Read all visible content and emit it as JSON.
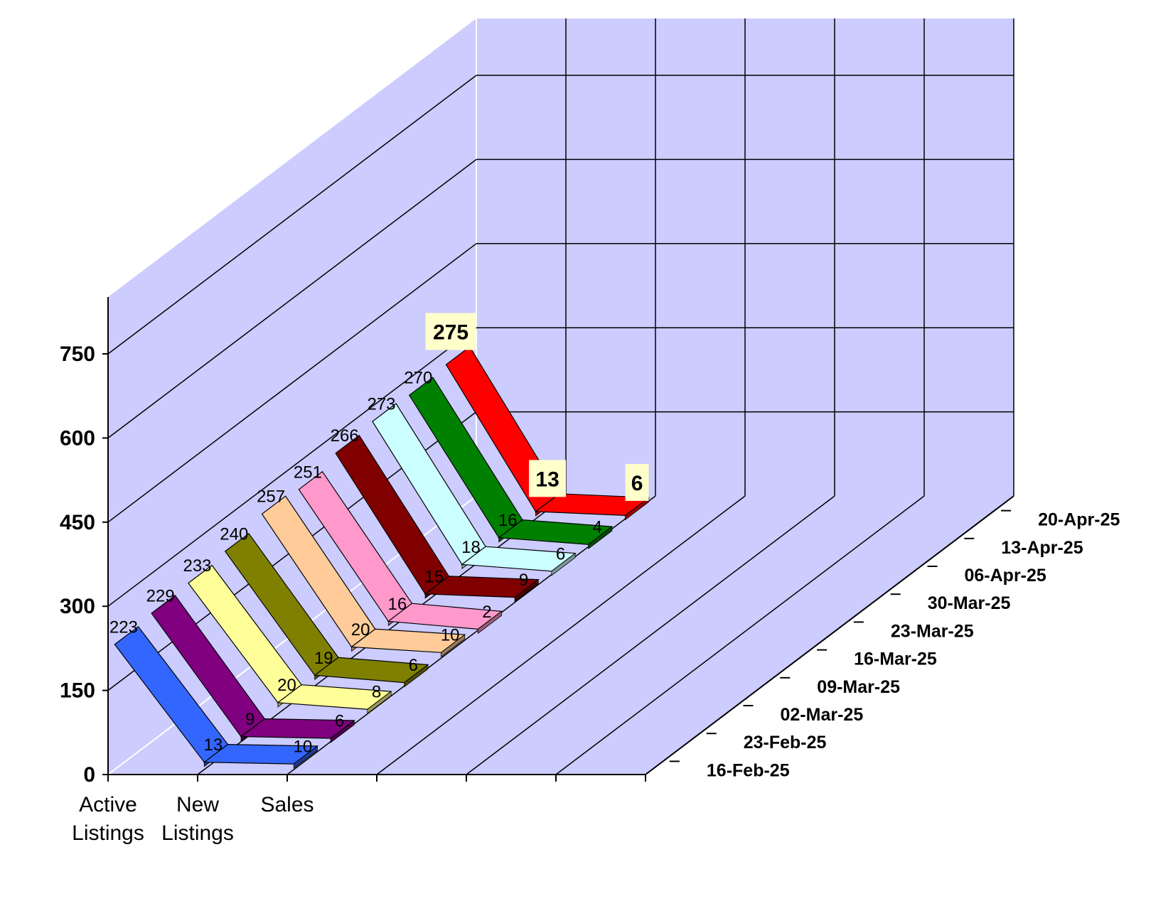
{
  "chart_data": {
    "type": "line",
    "style": "3d-ribbon",
    "categories": [
      "Active Listings",
      "New Listings",
      "Sales"
    ],
    "category_lines": [
      [
        "Active",
        "Listings"
      ],
      [
        "New",
        "Listings"
      ],
      [
        "Sales",
        ""
      ]
    ],
    "ylim": [
      0,
      750
    ],
    "yticks": [
      "0",
      "150",
      "300",
      "450",
      "600",
      "750"
    ],
    "grid": true,
    "series": [
      {
        "name": "16-Feb-25",
        "color": "#3366ff",
        "values": [
          223,
          13,
          10
        ]
      },
      {
        "name": "23-Feb-25",
        "color": "#800080",
        "values": [
          229,
          9,
          6
        ]
      },
      {
        "name": "02-Mar-25",
        "color": "#ffff99",
        "values": [
          233,
          20,
          8
        ]
      },
      {
        "name": "09-Mar-25",
        "color": "#808000",
        "values": [
          240,
          19,
          6
        ]
      },
      {
        "name": "16-Mar-25",
        "color": "#ffcc99",
        "values": [
          257,
          20,
          10
        ]
      },
      {
        "name": "23-Mar-25",
        "color": "#ff99cc",
        "values": [
          251,
          16,
          2
        ]
      },
      {
        "name": "30-Mar-25",
        "color": "#800000",
        "values": [
          266,
          15,
          9
        ]
      },
      {
        "name": "06-Apr-25",
        "color": "#ccffff",
        "values": [
          273,
          18,
          6
        ]
      },
      {
        "name": "13-Apr-25",
        "color": "#008000",
        "values": [
          270,
          16,
          4
        ]
      },
      {
        "name": "20-Apr-25",
        "color": "#ff0000",
        "values": [
          275,
          13,
          6
        ]
      }
    ],
    "colors": {
      "walls": "#ccccff",
      "grid": "#000000",
      "highlight_label_bg": "#ffffcc"
    }
  }
}
